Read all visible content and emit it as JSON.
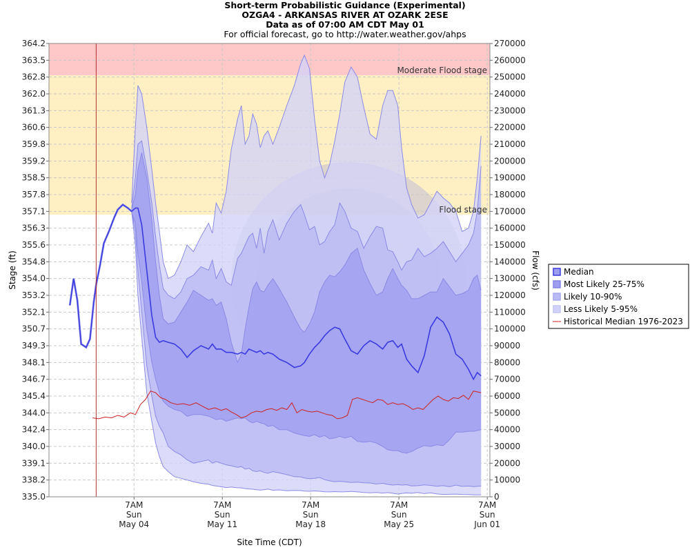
{
  "chart_data": {
    "type": "area",
    "title": "Short-term Probabilistic Guidance (Experimental)",
    "subtitle_lines": [
      "OZGA4 - ARKANSAS RIVER AT OZARK 2ESE",
      "Data as of 07:00 AM CDT May 01",
      "For official forecast, go to http://water.weather.gov/ahps"
    ],
    "xlabel": "Site Time (CDT)",
    "ylabel_left": "Stage (ft)",
    "ylabel_right": "Flow (cfs)",
    "x_unit": "days since Apr 27 00:00 CDT",
    "xlim": [
      0.55,
      35.5
    ],
    "x_ticks": [
      {
        "x": 7.29,
        "lines": [
          "7AM",
          "Sun",
          "May 04"
        ]
      },
      {
        "x": 14.29,
        "lines": [
          "7AM",
          "Sun",
          "May 11"
        ]
      },
      {
        "x": 21.29,
        "lines": [
          "7AM",
          "Sun",
          "May 18"
        ]
      },
      {
        "x": 28.29,
        "lines": [
          "7AM",
          "Sun",
          "May 25"
        ]
      },
      {
        "x": 35.29,
        "lines": [
          "7AM",
          "Sun",
          "Jun 01"
        ]
      }
    ],
    "left_ticks": [
      "364.2",
      "363.5",
      "362.8",
      "362.0",
      "361.3",
      "360.6",
      "359.8",
      "359.2",
      "358.5",
      "357.8",
      "357.1",
      "356.3",
      "355.6",
      "354.8",
      "354.0",
      "353.2",
      "352.1",
      "350.7",
      "349.3",
      "348.1",
      "346.7",
      "345.4",
      "344.0",
      "342.4",
      "340.0",
      "339.1",
      "338.2",
      "335.0"
    ],
    "flow_ylim": [
      0,
      270000
    ],
    "right_ticks": [
      270000,
      260000,
      250000,
      240000,
      230000,
      220000,
      210000,
      200000,
      190000,
      180000,
      170000,
      160000,
      150000,
      140000,
      130000,
      120000,
      110000,
      100000,
      90000,
      80000,
      70000,
      60000,
      50000,
      40000,
      30000,
      20000,
      10000,
      0
    ],
    "now_x": 4.29,
    "flood_bands": [
      {
        "name": "Moderate Flood stage",
        "from_flow": 251000,
        "to_flow": 274000,
        "color": "#ffc8c8"
      },
      {
        "name": "Flood stage",
        "from_flow": 168000,
        "to_flow": 251000,
        "color": "#fff0c4"
      }
    ],
    "observed": {
      "x": [
        2.2,
        2.5,
        2.8,
        3.1,
        3.5,
        3.8,
        4.1,
        4.3,
        4.6,
        4.9,
        5.3,
        5.7,
        6.0,
        6.4,
        6.8,
        7.1
      ],
      "flow": [
        114000,
        130000,
        117000,
        91000,
        89000,
        94000,
        116000,
        127000,
        138000,
        151000,
        158000,
        166000,
        171000,
        174000,
        172000,
        170000
      ]
    },
    "series": [
      {
        "name": "Less Likely 5-95%",
        "color": "#d2d2f8",
        "x": [
          7.1,
          7.4,
          7.6,
          7.9,
          8.3,
          8.7,
          9.0,
          9.3,
          9.6,
          10.0,
          10.5,
          11.0,
          11.5,
          12.0,
          12.6,
          13.2,
          13.5,
          13.8,
          14.2,
          14.6,
          15.0,
          15.5,
          15.8,
          16.1,
          16.4,
          16.7,
          17.0,
          17.3,
          17.6,
          17.9,
          18.3,
          18.8,
          19.4,
          20.0,
          20.5,
          20.8,
          21.2,
          21.6,
          22.0,
          22.4,
          22.8,
          23.2,
          23.6,
          24.0,
          24.5,
          25.0,
          25.5,
          26.0,
          26.5,
          27.0,
          27.4,
          27.8,
          28.2,
          28.5,
          28.9,
          29.3,
          29.8,
          30.3,
          30.8,
          31.3,
          31.8,
          32.3,
          32.8,
          33.3,
          33.8,
          34.2,
          34.5,
          34.8
        ],
        "upper": [
          175000,
          220000,
          245000,
          240000,
          220000,
          195000,
          175000,
          158000,
          140000,
          130000,
          132000,
          140000,
          150000,
          146000,
          155000,
          163000,
          157000,
          175000,
          169000,
          182000,
          207000,
          225000,
          233000,
          210000,
          215000,
          228000,
          222000,
          208000,
          215000,
          218000,
          210000,
          220000,
          233000,
          245000,
          258000,
          263000,
          255000,
          225000,
          200000,
          190000,
          198000,
          212000,
          228000,
          247000,
          256000,
          250000,
          232000,
          216000,
          213000,
          233000,
          242000,
          242000,
          233000,
          208000,
          184000,
          174000,
          166000,
          168000,
          175000,
          182000,
          178000,
          175000,
          170000,
          158000,
          160000,
          170000,
          190000,
          215000
        ],
        "lower": [
          170000,
          150000,
          120000,
          95000,
          62000,
          45000,
          32000,
          24000,
          18000,
          15000,
          12000,
          11000,
          10000,
          9000,
          8000,
          7500,
          6800,
          6400,
          6000,
          5500,
          5800,
          5400,
          5300,
          4900,
          4700,
          4500,
          4200,
          4000,
          4200,
          4600,
          3900,
          4100,
          3600,
          3800,
          3700,
          3400,
          3300,
          3500,
          3300,
          3000,
          2900,
          3100,
          2900,
          3000,
          3200,
          2900,
          2600,
          2400,
          2600,
          2200,
          2500,
          2100,
          1600,
          2000,
          2300,
          2100,
          2600,
          1900,
          2400,
          1700,
          1400,
          1500,
          1600,
          1400,
          1300,
          1200,
          1100,
          1200
        ]
      },
      {
        "name": "Likely 10-90%",
        "color": "#babaf4",
        "x": [
          7.1,
          7.4,
          7.6,
          7.9,
          8.3,
          8.7,
          9.0,
          9.3,
          9.6,
          10.0,
          10.5,
          11.0,
          11.5,
          12.0,
          12.6,
          13.2,
          13.5,
          13.8,
          14.2,
          14.6,
          15.0,
          15.5,
          15.8,
          16.1,
          16.4,
          16.7,
          17.0,
          17.3,
          17.6,
          17.9,
          18.3,
          18.8,
          19.4,
          20.0,
          20.5,
          20.8,
          21.2,
          21.6,
          22.0,
          22.4,
          22.8,
          23.2,
          23.6,
          24.0,
          24.5,
          25.0,
          25.5,
          26.0,
          26.5,
          27.0,
          27.4,
          27.8,
          28.2,
          28.5,
          28.9,
          29.3,
          29.8,
          30.3,
          30.8,
          31.3,
          31.8,
          32.3,
          32.8,
          33.3,
          33.8,
          34.2,
          34.5,
          34.8
        ],
        "upper": [
          172000,
          190000,
          210000,
          212000,
          195000,
          175000,
          155000,
          138000,
          124000,
          120000,
          118000,
          122000,
          130000,
          132000,
          137000,
          135000,
          141000,
          130000,
          136000,
          128000,
          126000,
          142000,
          145000,
          150000,
          155000,
          157000,
          148000,
          160000,
          145000,
          158000,
          165000,
          153000,
          163000,
          170000,
          174000,
          168000,
          159000,
          161000,
          150000,
          152000,
          158000,
          162000,
          175000,
          170000,
          160000,
          158000,
          148000,
          155000,
          161000,
          160000,
          147000,
          146000,
          140000,
          135000,
          140000,
          141000,
          148000,
          143000,
          145000,
          148000,
          152000,
          146000,
          140000,
          145000,
          150000,
          157000,
          170000,
          197000
        ],
        "lower": [
          170000,
          158000,
          135000,
          110000,
          78000,
          60000,
          48000,
          42000,
          38000,
          30000,
          27000,
          25000,
          22000,
          20000,
          21000,
          22000,
          20000,
          21000,
          20000,
          19000,
          18500,
          17500,
          18000,
          16500,
          17000,
          15500,
          15000,
          15500,
          14500,
          14000,
          15000,
          14200,
          13200,
          12000,
          11800,
          11200,
          10800,
          11000,
          11500,
          10200,
          9500,
          9000,
          9200,
          8900,
          8500,
          8700,
          8300,
          8200,
          7600,
          8000,
          7400,
          7000,
          7300,
          7000,
          7200,
          6500,
          6600,
          7100,
          6800,
          6300,
          6600,
          6000,
          7000,
          6200,
          6400,
          6100,
          6300,
          6400
        ]
      },
      {
        "name": "Most Likely 25-75%",
        "color": "#9e9ef0",
        "x": [
          7.1,
          7.4,
          7.6,
          7.9,
          8.3,
          8.7,
          9.0,
          9.3,
          9.6,
          10.0,
          10.5,
          11.0,
          11.5,
          12.0,
          12.6,
          13.2,
          13.5,
          13.8,
          14.2,
          14.6,
          15.0,
          15.5,
          15.8,
          16.1,
          16.4,
          16.7,
          17.0,
          17.3,
          17.6,
          17.9,
          18.3,
          18.8,
          19.4,
          20.0,
          20.5,
          20.8,
          21.2,
          21.6,
          22.0,
          22.4,
          22.8,
          23.2,
          23.6,
          24.0,
          24.5,
          25.0,
          25.5,
          26.0,
          26.5,
          27.0,
          27.4,
          27.8,
          28.2,
          28.5,
          28.9,
          29.3,
          29.8,
          30.3,
          30.8,
          31.3,
          31.8,
          32.3,
          32.8,
          33.3,
          33.8,
          34.2,
          34.5,
          34.8
        ],
        "upper": [
          171000,
          180000,
          195000,
          205000,
          190000,
          165000,
          140000,
          120000,
          106000,
          103000,
          104000,
          110000,
          116000,
          123000,
          120000,
          117000,
          118000,
          114000,
          116000,
          106000,
          92000,
          80000,
          85000,
          100000,
          113000,
          124000,
          128000,
          123000,
          122000,
          126000,
          130000,
          124000,
          116000,
          107000,
          100000,
          98000,
          103000,
          110000,
          122000,
          128000,
          132000,
          131000,
          134000,
          138000,
          145000,
          148000,
          135000,
          127000,
          120000,
          122000,
          130000,
          136000,
          130000,
          126000,
          123000,
          118000,
          118000,
          120000,
          122000,
          122000,
          130000,
          125000,
          120000,
          121000,
          123000,
          130000,
          132000,
          123000
        ],
        "lower": [
          169000,
          163000,
          145000,
          128000,
          100000,
          80000,
          70000,
          62000,
          57000,
          54000,
          52000,
          51000,
          48000,
          49000,
          49000,
          48000,
          47000,
          46000,
          46500,
          45000,
          46000,
          47000,
          46500,
          47000,
          45000,
          44000,
          45000,
          44000,
          43500,
          42000,
          42500,
          40000,
          40000,
          38000,
          37000,
          36500,
          36000,
          37000,
          35500,
          36500,
          34500,
          35000,
          36000,
          35000,
          36000,
          33000,
          32500,
          33000,
          32000,
          30000,
          28000,
          27500,
          27500,
          26500,
          26000,
          27000,
          29000,
          30500,
          30000,
          31000,
          30500,
          34000,
          38500,
          38500,
          39000,
          39000,
          39500,
          40000
        ]
      }
    ],
    "median": {
      "name": "Median",
      "color": "#3a3ae0",
      "x": [
        2.2,
        2.5,
        2.8,
        3.1,
        3.5,
        3.8,
        4.1,
        4.3,
        4.6,
        4.9,
        5.3,
        5.7,
        6.0,
        6.4,
        6.8,
        7.1,
        7.4,
        7.6,
        7.9,
        8.3,
        8.7,
        9.0,
        9.3,
        9.6,
        10.0,
        10.5,
        11.0,
        11.5,
        12.0,
        12.6,
        13.2,
        13.5,
        13.8,
        14.2,
        14.6,
        15.0,
        15.5,
        15.8,
        16.1,
        16.4,
        16.7,
        17.0,
        17.3,
        17.6,
        17.9,
        18.3,
        18.8,
        19.4,
        20.0,
        20.5,
        20.8,
        21.2,
        21.6,
        22.0,
        22.4,
        22.8,
        23.2,
        23.6,
        24.0,
        24.5,
        25.0,
        25.5,
        26.0,
        26.5,
        27.0,
        27.4,
        27.8,
        28.2,
        28.5,
        28.9,
        29.3,
        29.8,
        30.3,
        30.8,
        31.3,
        31.8,
        32.3,
        32.8,
        33.3,
        33.8,
        34.2,
        34.5,
        34.8
      ],
      "flow": [
        114000,
        130000,
        117000,
        91000,
        89000,
        94000,
        116000,
        127000,
        138000,
        151000,
        158000,
        166000,
        171000,
        174000,
        172000,
        170000,
        172000,
        172000,
        162000,
        135000,
        108000,
        95000,
        92000,
        93000,
        92000,
        91000,
        88000,
        83000,
        87000,
        90000,
        88000,
        91000,
        88000,
        88000,
        86000,
        86000,
        85000,
        86000,
        85000,
        88000,
        87000,
        86000,
        87000,
        85000,
        86000,
        85000,
        82000,
        80000,
        77000,
        78000,
        80000,
        85000,
        89000,
        92000,
        96000,
        99000,
        101000,
        100000,
        94000,
        87000,
        85000,
        90000,
        93000,
        91000,
        88000,
        92000,
        93000,
        89000,
        91000,
        82000,
        78000,
        74000,
        84000,
        101000,
        107000,
        104000,
        97000,
        85000,
        82000,
        76000,
        70000,
        74000,
        72000
      ]
    },
    "historical": {
      "name": "Historical Median 1976-2023",
      "color": "#d02020",
      "x": [
        4.0,
        4.5,
        5.0,
        5.5,
        6.0,
        6.5,
        7.0,
        7.4,
        7.8,
        8.2,
        8.6,
        9.0,
        9.4,
        9.8,
        10.2,
        10.7,
        11.2,
        11.7,
        12.2,
        12.7,
        13.2,
        13.7,
        14.2,
        14.6,
        15.0,
        15.4,
        15.8,
        16.2,
        16.6,
        17.0,
        17.4,
        17.8,
        18.2,
        18.6,
        19.0,
        19.4,
        19.8,
        20.2,
        20.6,
        21.0,
        21.4,
        21.8,
        22.2,
        22.6,
        23.0,
        23.4,
        23.8,
        24.2,
        24.6,
        25.0,
        25.4,
        25.8,
        26.2,
        26.6,
        27.0,
        27.4,
        27.8,
        28.2,
        28.6,
        29.0,
        29.4,
        29.8,
        30.2,
        30.6,
        31.0,
        31.4,
        31.8,
        32.2,
        32.6,
        33.0,
        33.4,
        33.8,
        34.2,
        34.8
      ],
      "flow": [
        47000,
        46500,
        47500,
        47000,
        48500,
        47500,
        50000,
        49000,
        55000,
        58000,
        63000,
        62000,
        59000,
        58000,
        56000,
        55000,
        55500,
        54500,
        56000,
        54000,
        52000,
        53000,
        51500,
        52500,
        50500,
        49000,
        47000,
        48000,
        50000,
        51000,
        50500,
        52000,
        52500,
        51500,
        53000,
        52000,
        56000,
        50000,
        52000,
        51000,
        50500,
        51000,
        50000,
        49000,
        48500,
        46500,
        47000,
        48500,
        58000,
        59000,
        58000,
        57000,
        56000,
        58000,
        57500,
        55000,
        56000,
        55000,
        55500,
        54000,
        52000,
        53000,
        52000,
        55000,
        58000,
        60000,
        58000,
        57000,
        59000,
        58500,
        60500,
        58000,
        63000,
        62000
      ]
    },
    "legend": {
      "placement": "right",
      "items": [
        {
          "label": "Median",
          "kind": "band",
          "fill": "#9e9ef0",
          "stroke": "#3a3ae0"
        },
        {
          "label": "Most Likely 25-75%",
          "kind": "band",
          "fill": "#9e9ef0",
          "stroke": "#8282e8"
        },
        {
          "label": "Likely 10-90%",
          "kind": "band",
          "fill": "#babaf4",
          "stroke": "#a8a8ee"
        },
        {
          "label": "Less Likely 5-95%",
          "kind": "band",
          "fill": "#d2d2f8",
          "stroke": "#c4c4f4"
        },
        {
          "label": "Historical Median 1976-2023",
          "kind": "line",
          "stroke": "#d02020"
        }
      ]
    },
    "grid": true
  }
}
